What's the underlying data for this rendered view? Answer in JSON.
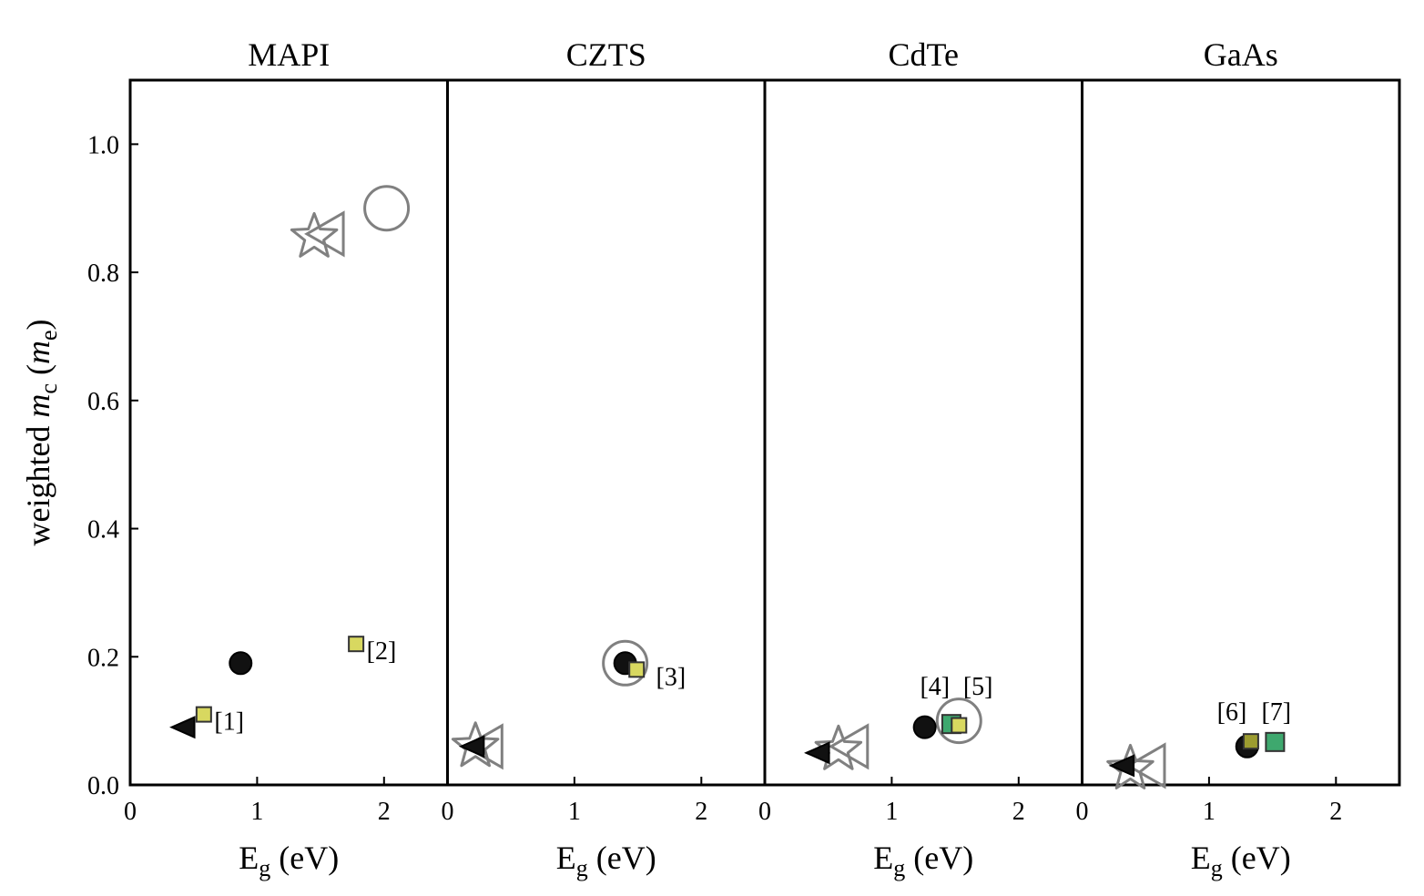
{
  "chart_data": {
    "type": "scatter",
    "ylabel": "weighted m_c (m_e)",
    "ylabel_parts": {
      "pre": "weighted ",
      "var": "m",
      "sub": "c",
      "open": " (",
      "unit": "m",
      "unit_sub": "e",
      "close": ")"
    },
    "xlabel_parts": {
      "var": "E",
      "sub": "g",
      "rest": " (eV)"
    },
    "xlim": [
      0,
      2.5
    ],
    "ylim": [
      0,
      1.1
    ],
    "xticks": [
      0,
      1,
      2
    ],
    "yticks": [
      0.0,
      0.2,
      0.4,
      0.6,
      0.8,
      1.0
    ],
    "ytick_labels": [
      "0.0",
      "0.2",
      "0.4",
      "0.6",
      "0.8",
      "1.0"
    ],
    "colors": {
      "black": "#111111",
      "gray": "#808080",
      "yellow": "#d8d860",
      "green": "#3ea86e",
      "olive": "#9c9c30"
    },
    "panels": [
      {
        "title": "MAPI",
        "points": [
          {
            "marker": "open-circle",
            "x": 2.02,
            "y": 0.9
          },
          {
            "marker": "open-triangle",
            "x": 1.55,
            "y": 0.86
          },
          {
            "marker": "open-star",
            "x": 1.45,
            "y": 0.855
          },
          {
            "marker": "filled-circle",
            "x": 0.87,
            "y": 0.19
          },
          {
            "marker": "filled-triangle",
            "x": 0.42,
            "y": 0.09
          },
          {
            "marker": "yellow-square",
            "x": 0.58,
            "y": 0.11
          },
          {
            "marker": "yellow-square",
            "x": 1.78,
            "y": 0.22
          }
        ],
        "annotations": [
          {
            "text": "[1]",
            "x": 0.78,
            "y": 0.1
          },
          {
            "text": "[2]",
            "x": 1.98,
            "y": 0.21
          }
        ]
      },
      {
        "title": "CZTS",
        "points": [
          {
            "marker": "open-triangle",
            "x": 0.3,
            "y": 0.06
          },
          {
            "marker": "open-star",
            "x": 0.22,
            "y": 0.06
          },
          {
            "marker": "filled-triangle",
            "x": 0.2,
            "y": 0.06
          },
          {
            "marker": "open-circle",
            "x": 1.4,
            "y": 0.19
          },
          {
            "marker": "filled-circle",
            "x": 1.4,
            "y": 0.19
          },
          {
            "marker": "yellow-square",
            "x": 1.49,
            "y": 0.18
          }
        ],
        "annotations": [
          {
            "text": "[3]",
            "x": 1.76,
            "y": 0.17
          }
        ]
      },
      {
        "title": "CdTe",
        "points": [
          {
            "marker": "open-triangle",
            "x": 0.68,
            "y": 0.06
          },
          {
            "marker": "open-star",
            "x": 0.58,
            "y": 0.055
          },
          {
            "marker": "filled-triangle",
            "x": 0.42,
            "y": 0.05
          },
          {
            "marker": "filled-circle",
            "x": 1.26,
            "y": 0.09
          },
          {
            "marker": "open-circle",
            "x": 1.53,
            "y": 0.1
          },
          {
            "marker": "green-square",
            "x": 1.47,
            "y": 0.095
          },
          {
            "marker": "yellow-square",
            "x": 1.53,
            "y": 0.093
          }
        ],
        "annotations": [
          {
            "text": "[4]",
            "x": 1.34,
            "y": 0.155
          },
          {
            "text": "[5]",
            "x": 1.68,
            "y": 0.155
          }
        ]
      },
      {
        "title": "GaAs",
        "points": [
          {
            "marker": "open-triangle",
            "x": 0.52,
            "y": 0.03
          },
          {
            "marker": "open-star",
            "x": 0.38,
            "y": 0.025
          },
          {
            "marker": "filled-triangle",
            "x": 0.32,
            "y": 0.03
          },
          {
            "marker": "filled-circle",
            "x": 1.3,
            "y": 0.06
          },
          {
            "marker": "olive-square",
            "x": 1.33,
            "y": 0.068
          },
          {
            "marker": "green-square",
            "x": 1.52,
            "y": 0.067
          }
        ],
        "annotations": [
          {
            "text": "[6]",
            "x": 1.18,
            "y": 0.115
          },
          {
            "text": "[7]",
            "x": 1.53,
            "y": 0.115
          }
        ]
      }
    ]
  }
}
